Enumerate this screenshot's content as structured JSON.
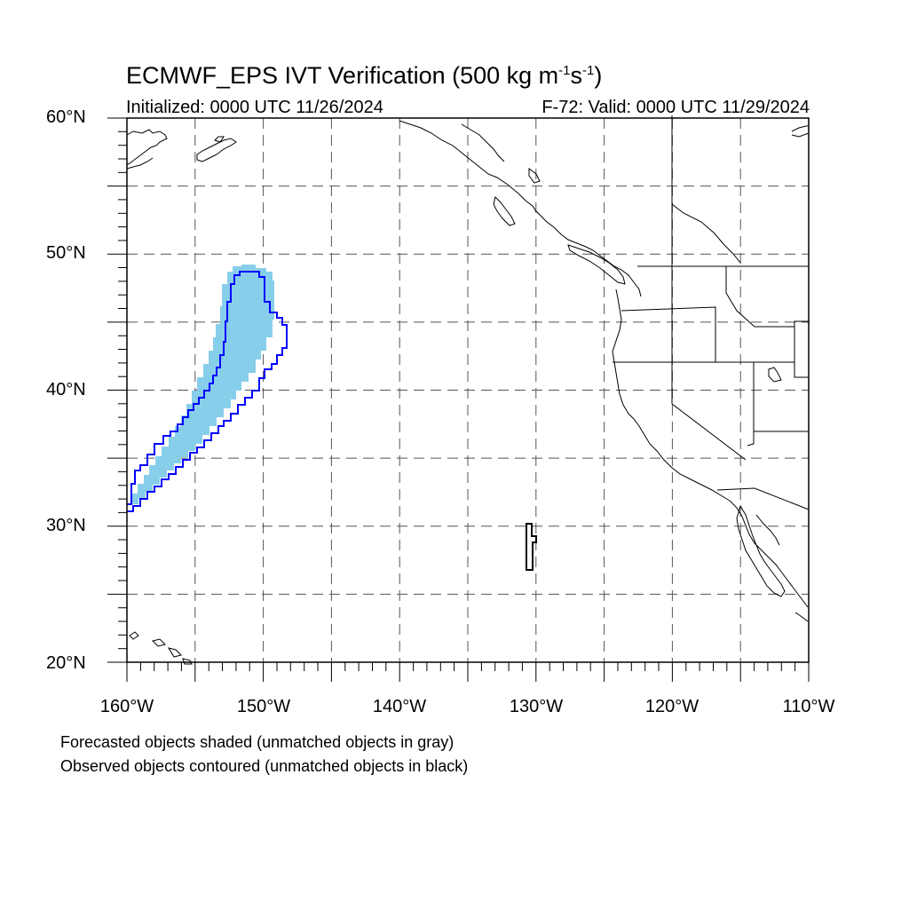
{
  "title": {
    "prefix": "ECMWF_EPS IVT Verification (500 kg m",
    "exp1": "-1",
    "mid": "s",
    "exp2": "-1",
    "suffix": ")"
  },
  "initialized": "Initialized: 0000 UTC 11/26/2024",
  "valid": "F-72: Valid: 0000 UTC 11/29/2024",
  "lat_labels": [
    "60°N",
    "50°N",
    "40°N",
    "30°N",
    "20°N"
  ],
  "lon_labels": [
    "160°W",
    "150°W",
    "140°W",
    "130°W",
    "120°W",
    "110°W"
  ],
  "footer": {
    "line1": "Forecasted objects shaded (unmatched objects in gray)",
    "line2": "Observed objects contoured (unmatched objects in black)"
  },
  "map": {
    "extent": {
      "lon": [
        -160,
        -110
      ],
      "lat": [
        20,
        60
      ]
    },
    "grid_spacing_deg": 5,
    "colors": {
      "forecast_fill": "#87ceeb",
      "matched_contour": "#0000ff",
      "unmatched_contour": "#000000",
      "coastline": "#000000",
      "grid": "#555555"
    }
  }
}
